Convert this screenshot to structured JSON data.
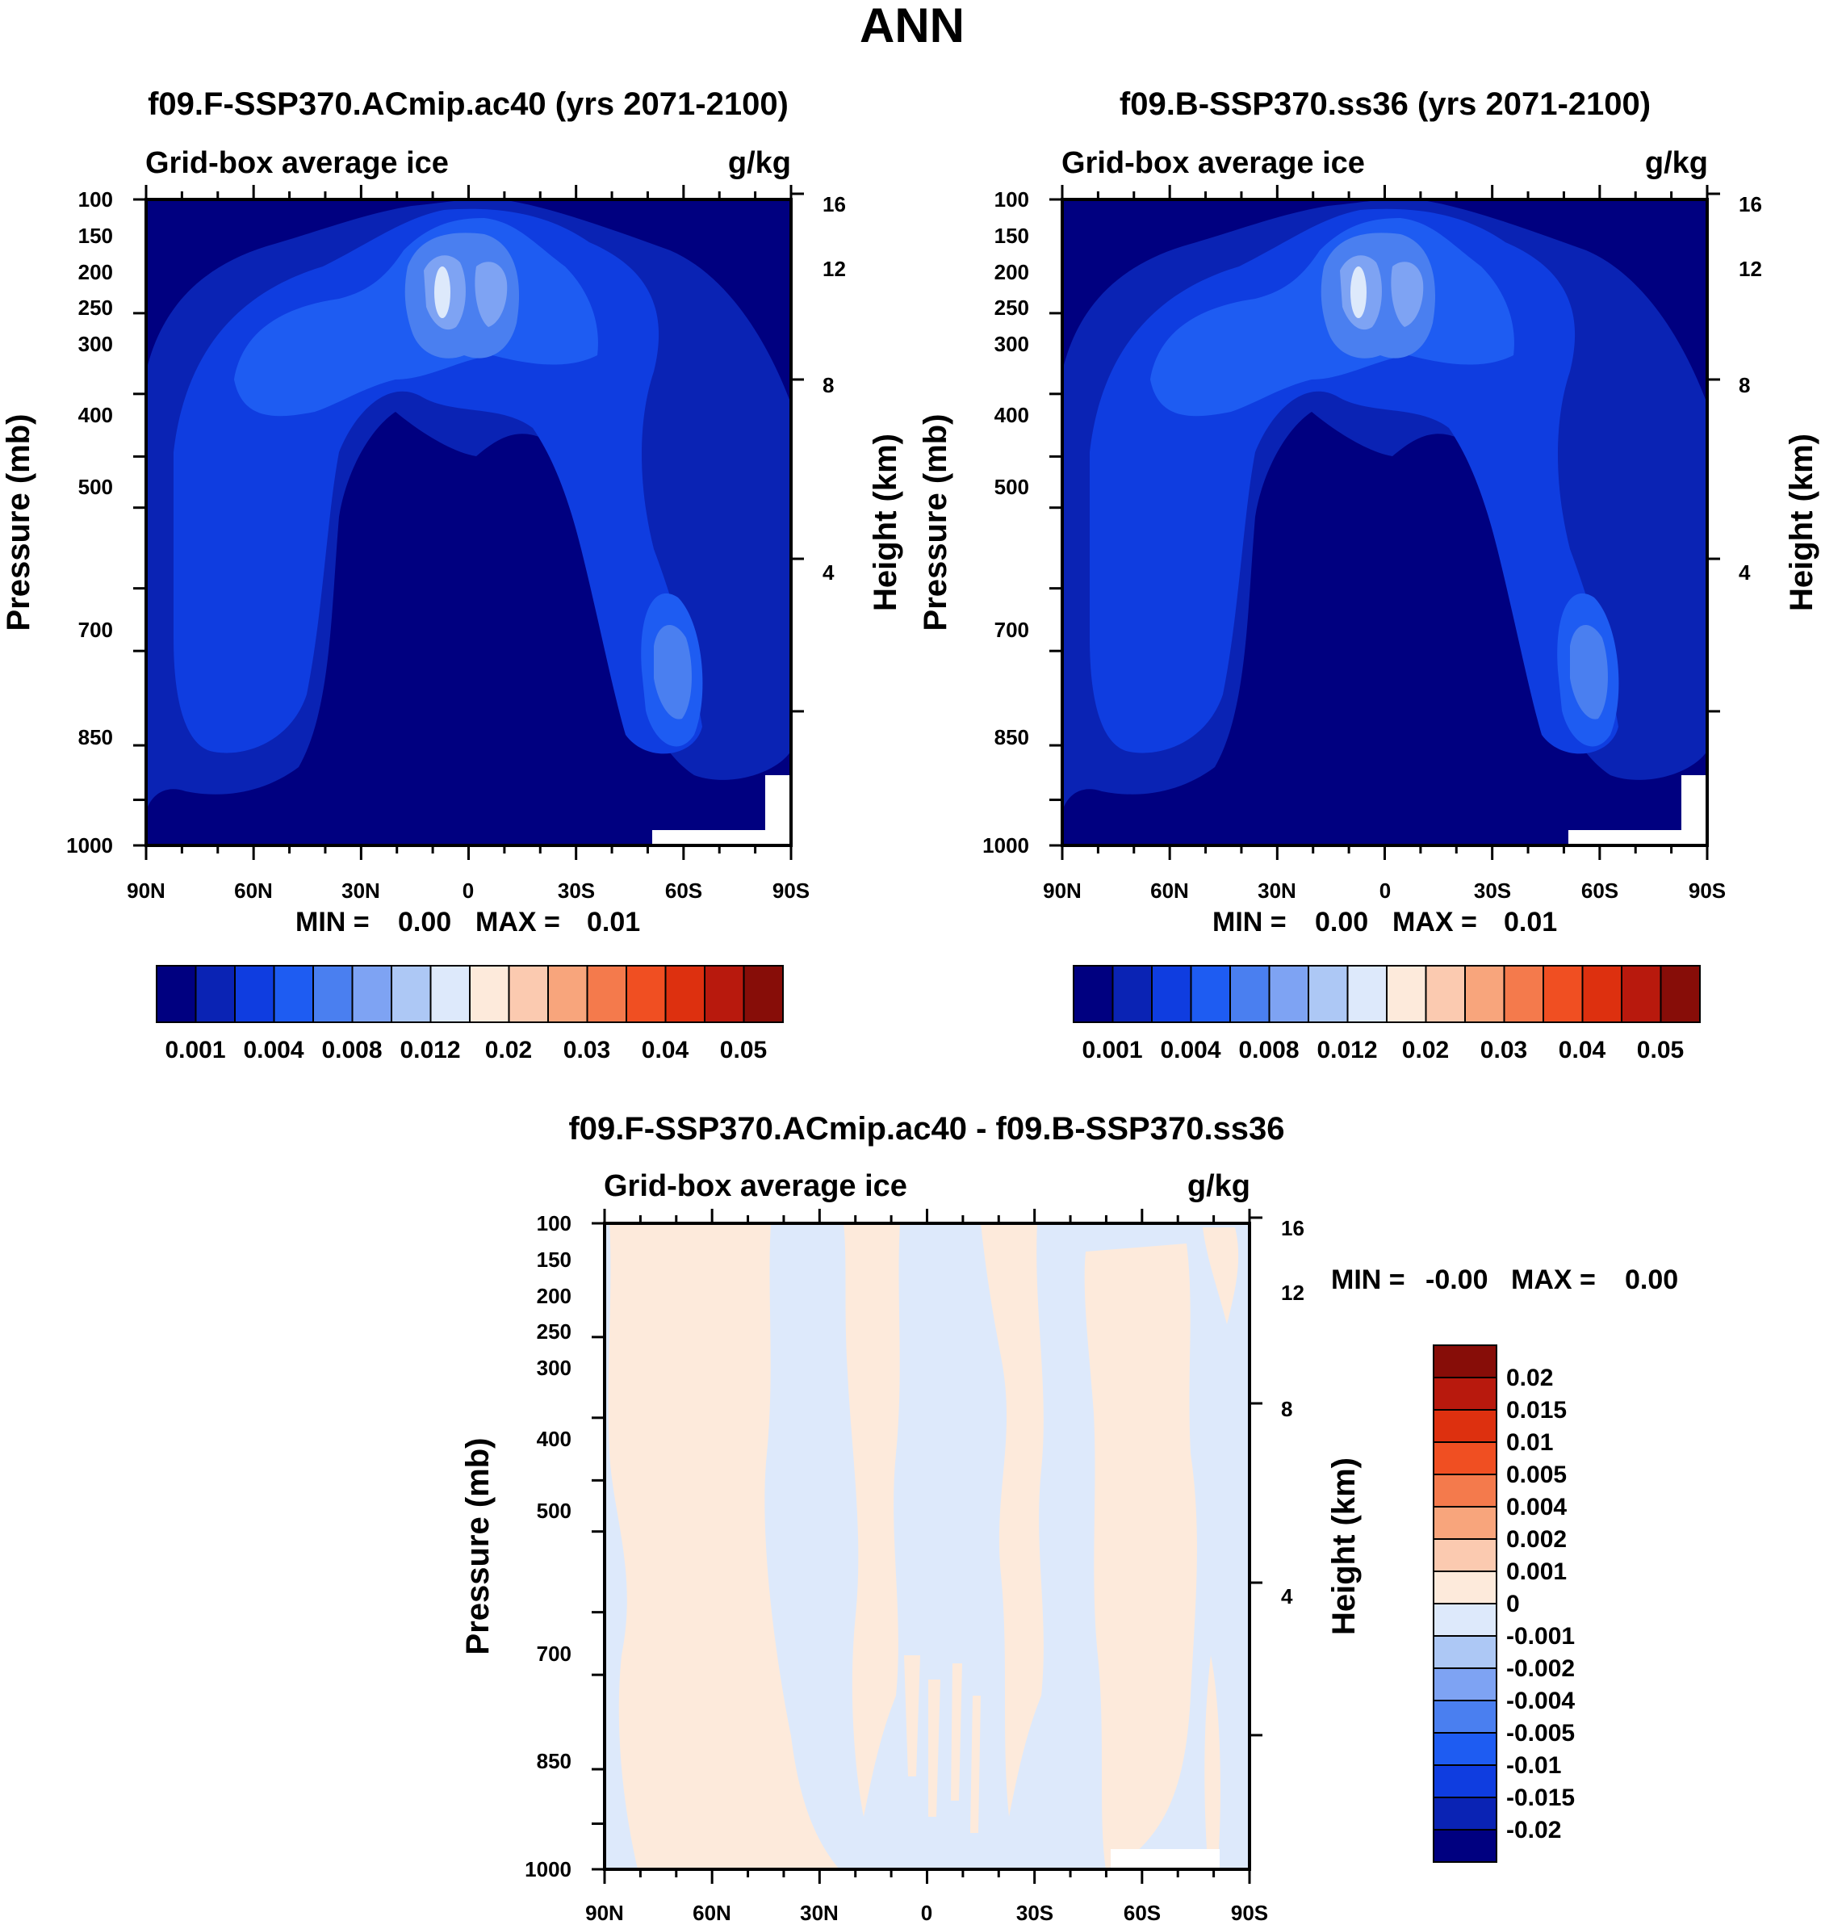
{
  "page_title": "ANN",
  "colors": {
    "cb_main": [
      "#000080",
      "#0a23b4",
      "#0f3de0",
      "#1e5cf2",
      "#4a7ff0",
      "#7ea3f3",
      "#adc8f5",
      "#dde9fb",
      "#fdeadb",
      "#fbcab0",
      "#f8a57c",
      "#f47a4c",
      "#f04f22",
      "#dd300f",
      "#b8190d",
      "#870d08"
    ],
    "diff_pos": "#fdeadb",
    "diff_neg": "#dde9fb",
    "axis": "#000000"
  },
  "chart_data": [
    {
      "type": "contour",
      "title": "f09.F-SSP370.ACmip.ac40 (yrs 2071-2100)",
      "left_label": "Grid-box average ice",
      "right_label": "g/kg",
      "ylabel": "Pressure (mb)",
      "y2label": "Height (km)",
      "y_ticks": [
        "100",
        "150",
        "200",
        "250",
        "300",
        "400",
        "500",
        "700",
        "850",
        "1000"
      ],
      "y2_ticks": [
        "16",
        "12",
        "8",
        "4"
      ],
      "x_ticks": [
        "90N",
        "60N",
        "30N",
        "0",
        "30S",
        "60S",
        "90S"
      ],
      "stats": {
        "min_label": "MIN =",
        "min": "0.00",
        "max_label": "MAX =",
        "max": "0.01"
      },
      "colorbar_labels": [
        "0.001",
        "0.004",
        "0.008",
        "0.012",
        "0.02",
        "0.03",
        "0.04",
        "0.05"
      ]
    },
    {
      "type": "contour",
      "title": "f09.B-SSP370.ss36 (yrs 2071-2100)",
      "left_label": "Grid-box average ice",
      "right_label": "g/kg",
      "ylabel": "Pressure (mb)",
      "y2label": "Height (km)",
      "y_ticks": [
        "100",
        "150",
        "200",
        "250",
        "300",
        "400",
        "500",
        "700",
        "850",
        "1000"
      ],
      "y2_ticks": [
        "16",
        "12",
        "8",
        "4"
      ],
      "x_ticks": [
        "90N",
        "60N",
        "30N",
        "0",
        "30S",
        "60S",
        "90S"
      ],
      "stats": {
        "min_label": "MIN =",
        "min": "0.00",
        "max_label": "MAX =",
        "max": "0.01"
      },
      "colorbar_labels": [
        "0.001",
        "0.004",
        "0.008",
        "0.012",
        "0.02",
        "0.03",
        "0.04",
        "0.05"
      ]
    },
    {
      "type": "contour",
      "title": "f09.F-SSP370.ACmip.ac40 - f09.B-SSP370.ss36",
      "left_label": "Grid-box average ice",
      "right_label": "g/kg",
      "ylabel": "Pressure (mb)",
      "y2label": "Height (km)",
      "y_ticks": [
        "100",
        "150",
        "200",
        "250",
        "300",
        "400",
        "500",
        "700",
        "850",
        "1000"
      ],
      "y2_ticks": [
        "16",
        "12",
        "8",
        "4"
      ],
      "x_ticks": [
        "90N",
        "60N",
        "30N",
        "0",
        "30S",
        "60S",
        "90S"
      ],
      "stats": {
        "min_label": "MIN =",
        "min": "-0.00",
        "max_label": "MAX =",
        "max": "0.00"
      },
      "colorbar_labels": [
        "0.02",
        "0.015",
        "0.01",
        "0.005",
        "0.004",
        "0.002",
        "0.001",
        "0",
        "-0.001",
        "-0.002",
        "-0.004",
        "-0.005",
        "-0.01",
        "-0.015",
        "-0.02"
      ]
    }
  ]
}
